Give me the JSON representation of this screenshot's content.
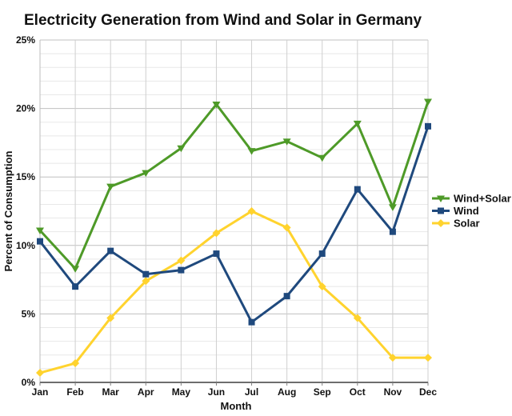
{
  "title": "Electricity Generation from Wind and Solar in Germany",
  "y_axis": {
    "label": "Percent of Consumption",
    "tick_labels": [
      "0%",
      "5%",
      "10%",
      "15%",
      "20%",
      "25%"
    ],
    "min": 0,
    "max": 25
  },
  "x_axis": {
    "label": "Month",
    "tick_labels": [
      "Jan",
      "Feb",
      "Mar",
      "Apr",
      "May",
      "Jun",
      "Jul",
      "Aug",
      "Sep",
      "Oct",
      "Nov",
      "Dec"
    ]
  },
  "legend": {
    "position": "right",
    "items": [
      {
        "label": "Wind+Solar",
        "color": "#4E9A28",
        "marker": "triangle-down"
      },
      {
        "label": "Wind",
        "color": "#1F497D",
        "marker": "square"
      },
      {
        "label": "Solar",
        "color": "#FFD32E",
        "marker": "diamond"
      }
    ]
  },
  "chart_data": {
    "type": "line",
    "title": "Electricity Generation from Wind and Solar in Germany",
    "xlabel": "Month",
    "ylabel": "Percent of Consumption",
    "ylim": [
      0,
      25
    ],
    "grid": {
      "minor_step_pct": 1,
      "major_step_pct": 5,
      "vertical_per_month": true
    },
    "categories": [
      "Jan",
      "Feb",
      "Mar",
      "Apr",
      "May",
      "Jun",
      "Jul",
      "Aug",
      "Sep",
      "Oct",
      "Nov",
      "Dec"
    ],
    "series": [
      {
        "name": "Wind+Solar",
        "color": "#4E9A28",
        "marker": "triangle-down",
        "values": [
          11.1,
          8.3,
          14.3,
          15.3,
          17.1,
          20.3,
          16.9,
          17.6,
          16.4,
          18.9,
          12.8,
          20.5
        ]
      },
      {
        "name": "Wind",
        "color": "#1F497D",
        "marker": "square",
        "values": [
          10.3,
          7.0,
          9.6,
          7.9,
          8.2,
          9.4,
          4.4,
          6.3,
          9.4,
          14.1,
          11.0,
          18.7
        ]
      },
      {
        "name": "Solar",
        "color": "#FFD32E",
        "marker": "diamond",
        "values": [
          0.7,
          1.4,
          4.7,
          7.4,
          8.9,
          10.9,
          12.5,
          11.3,
          7.0,
          4.7,
          1.8,
          1.8
        ]
      }
    ]
  }
}
